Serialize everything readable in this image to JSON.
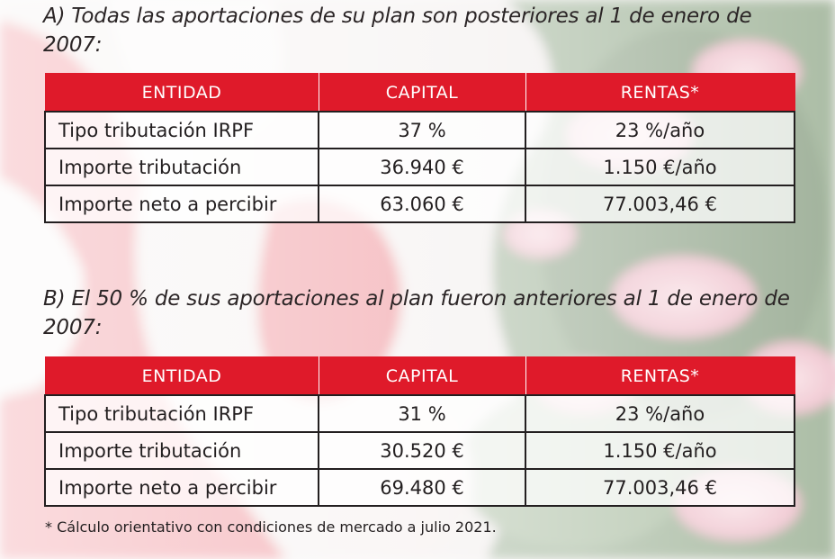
{
  "colors": {
    "header_red": "#df1a2a",
    "text": "#231f20"
  },
  "section_a": {
    "heading": "A)  Todas las aportaciones de su plan son posteriores al 1 de enero de 2007:",
    "columns": [
      "ENTIDAD",
      "CAPITAL",
      "RENTAS*"
    ],
    "rows": [
      [
        "Tipo tributación IRPF",
        "37 %",
        "23 %/año"
      ],
      [
        "Importe tributación",
        "36.940 €",
        "1.150 €/año"
      ],
      [
        "Importe neto a percibir",
        "63.060 €",
        "77.003,46 €"
      ]
    ]
  },
  "section_b": {
    "heading": "B)  El 50 % de sus aportaciones al plan fueron anteriores al 1 de enero de 2007:",
    "columns": [
      "ENTIDAD",
      "CAPITAL",
      "RENTAS*"
    ],
    "rows": [
      [
        "Tipo tributación IRPF",
        "31 %",
        "23 %/año"
      ],
      [
        "Importe tributación",
        "30.520 €",
        "1.150 €/año"
      ],
      [
        "Importe neto a percibir",
        "69.480 €",
        "77.003,46 €"
      ]
    ]
  },
  "footnote": "*  Cálculo orientativo con condiciones de mercado a julio 2021."
}
